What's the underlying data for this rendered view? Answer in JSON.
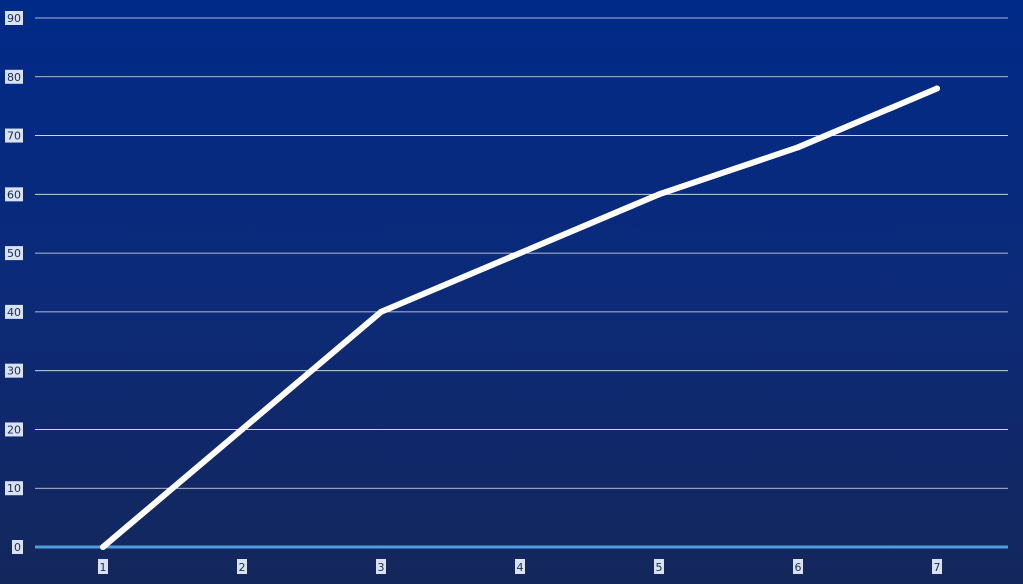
{
  "chart_data": {
    "type": "line",
    "title": "",
    "xlabel": "",
    "ylabel": "",
    "x": [
      1,
      2,
      3,
      4,
      5,
      6,
      7
    ],
    "x_tick_labels": [
      "1",
      "2",
      "3",
      "4",
      "5",
      "6",
      "7"
    ],
    "y_tick_labels": [
      "0",
      "10",
      "20",
      "30",
      "40",
      "50",
      "60",
      "70",
      "80",
      "90"
    ],
    "series": [
      {
        "values": [
          0,
          20,
          40,
          50,
          60,
          68,
          78
        ]
      }
    ],
    "ylim": [
      0,
      90
    ],
    "grid": true,
    "legend": "none",
    "colors": {
      "line": "#ffffff",
      "grid": "#ffffff",
      "baseline": "#4a9fe0"
    }
  }
}
